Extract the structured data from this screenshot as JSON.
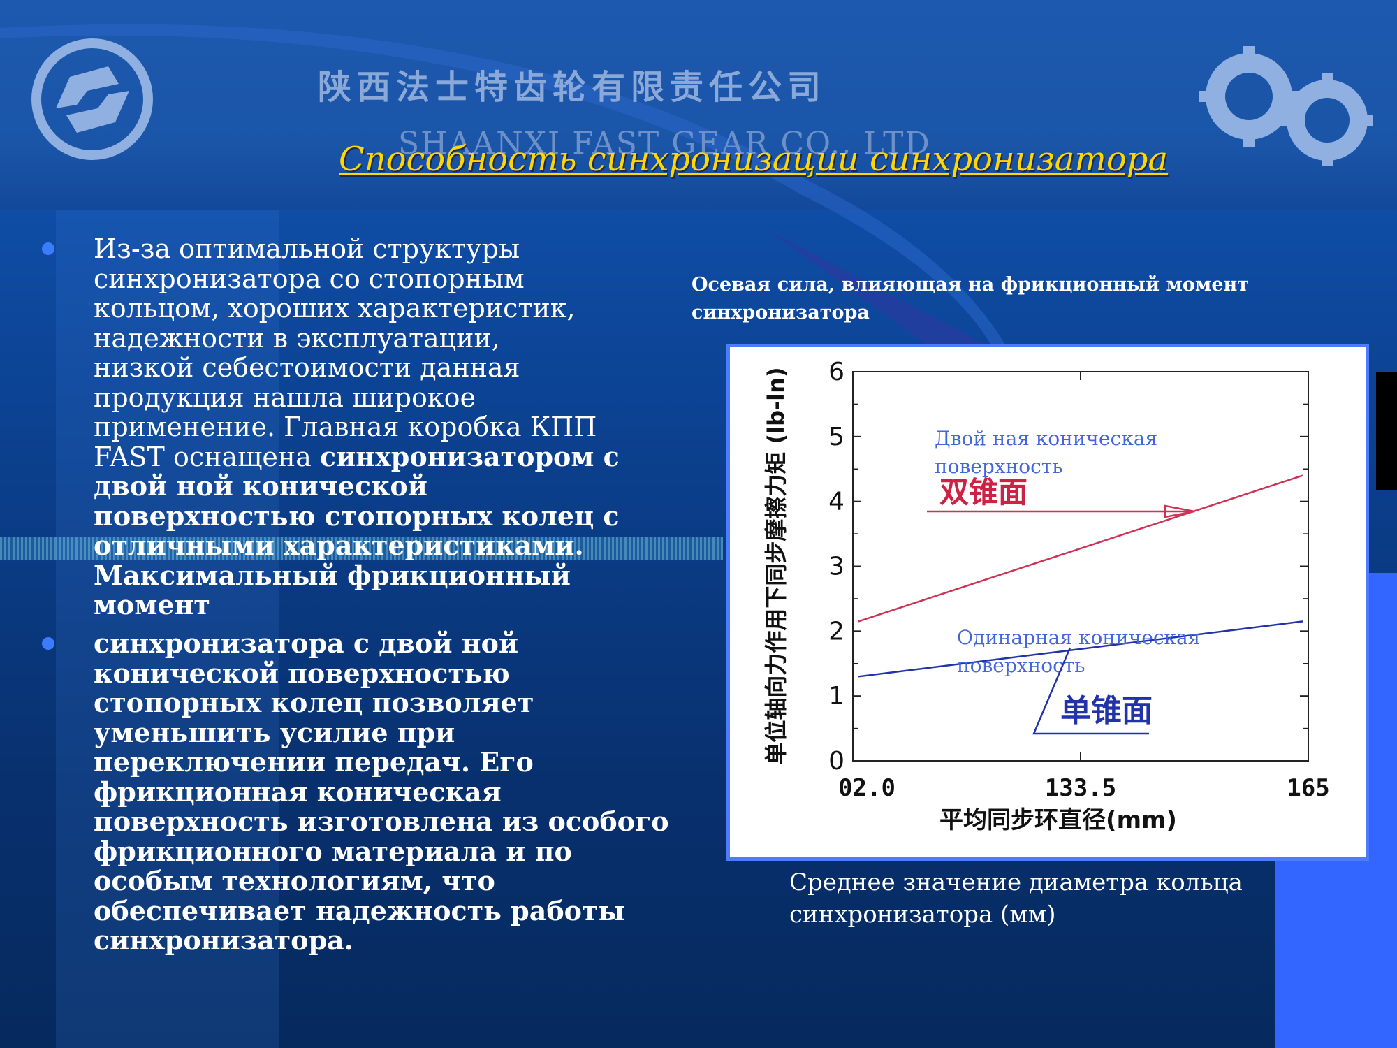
{
  "header": {
    "company_cn": "陕西法士特齿轮有限责任公司",
    "company_en": "SHAANXI FAST GEAR CO., LTD",
    "title": "Способность синхронизации синхронизатора"
  },
  "bullets": [
    {
      "lines": [
        {
          "text": "Из-за оптимальной  структуры",
          "bold": false
        },
        {
          "text": "синхронизатора со стопорным",
          "bold": false
        },
        {
          "text": "кольцом, хороших характеристик,",
          "bold": false
        },
        {
          "text": "надежности в эксплуатации,",
          "bold": false
        },
        {
          "text": "низкой  себестоимости данная",
          "bold": false
        },
        {
          "text": "продукция нашла широкое",
          "bold": false
        },
        {
          "text": "применение. Главная коробка КПП",
          "bold": false
        }
      ],
      "mixed_line": {
        "plain": "FAST оснащена  ",
        "bold": "синхронизатором с"
      },
      "bold_lines": [
        "двой ной  конической",
        "поверхностью стопорных колец с",
        "отличными характеристиками.",
        "Максимальный  фрикционный",
        "момент"
      ]
    },
    {
      "bold_lines": [
        "синхронизатора с двой ной",
        "конической  поверхностью",
        "стопорных колец  позволяет",
        "уменьшить усилие при",
        "переключении передач. Его",
        "фрикционная коническая",
        "поверхность изготовлена из особого",
        "фрикционного материала и  по",
        "особым технологиям, что",
        "обеспечивает надежность работы",
        "синхронизатора."
      ]
    }
  ],
  "captions": {
    "top_line1": "Осевая сила, влияющая на фрикционный  момент",
    "top_line2": "синхронизатора",
    "bottom_line1": "Среднее значение диаметра кольца",
    "bottom_line2": "синхронизатора (мм)"
  },
  "chart_data": {
    "type": "line",
    "xlabel": "平均同步环直径(mm)",
    "ylabel": "单位轴向力作用下同步摩擦力矩 (lb-ln)",
    "x_ticks": [
      "02.0",
      "133.5",
      "165"
    ],
    "y_ticks": [
      "0",
      "1",
      "2",
      "3",
      "4",
      "5",
      "6"
    ],
    "ylim": [
      0,
      6
    ],
    "grid": false,
    "series": [
      {
        "name": "双锥面",
        "color": "#cc3355",
        "points": [
          [
            0,
            2.15
          ],
          [
            1,
            4.4
          ]
        ]
      },
      {
        "name": "单锥面",
        "color": "#2233aa",
        "points": [
          [
            0,
            1.3
          ],
          [
            1,
            2.15
          ]
        ]
      }
    ],
    "annotations": [
      {
        "text": "Двой ная коническая",
        "color": "#4466dd"
      },
      {
        "text": "поверхность",
        "color": "#4466dd"
      },
      {
        "text": "Одинарная коническая",
        "color": "#4466dd"
      },
      {
        "text": "поверхность",
        "color": "#4466dd"
      }
    ]
  }
}
